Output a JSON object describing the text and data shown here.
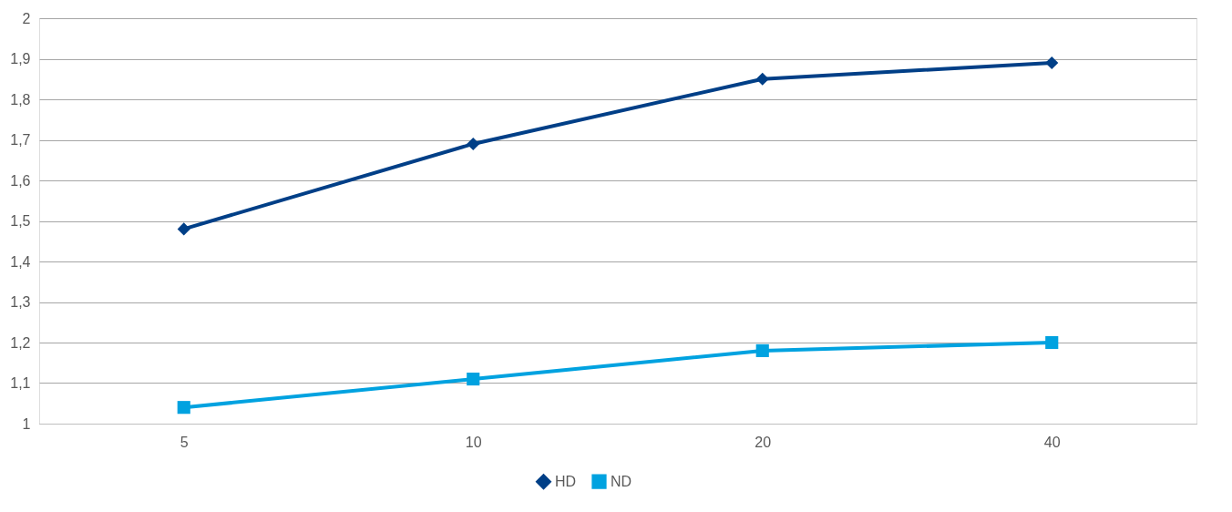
{
  "chart_data": {
    "type": "line",
    "categories": [
      "5",
      "10",
      "20",
      "40"
    ],
    "series": [
      {
        "name": "HD",
        "color": "#003f87",
        "marker": "diamond",
        "values": [
          1.48,
          1.69,
          1.85,
          1.89
        ]
      },
      {
        "name": "ND",
        "color": "#00a2e0",
        "marker": "square",
        "values": [
          1.04,
          1.11,
          1.18,
          1.2
        ]
      }
    ],
    "ylim": [
      1,
      2
    ],
    "yticks": [
      1,
      {
        "value": 1.1,
        "label": "1,1"
      },
      {
        "value": 1.2,
        "label": "1,2"
      },
      {
        "value": 1.3,
        "label": "1,3"
      },
      {
        "value": 1.4,
        "label": "1,4"
      },
      {
        "value": 1.5,
        "label": "1,5"
      },
      {
        "value": 1.6,
        "label": "1,6"
      },
      {
        "value": 1.7,
        "label": "1,7"
      },
      {
        "value": 1.8,
        "label": "1,8"
      },
      {
        "value": 1.9,
        "label": "1,9"
      },
      2
    ],
    "grid": "y",
    "legend": "bottom",
    "line_style": "solid"
  }
}
